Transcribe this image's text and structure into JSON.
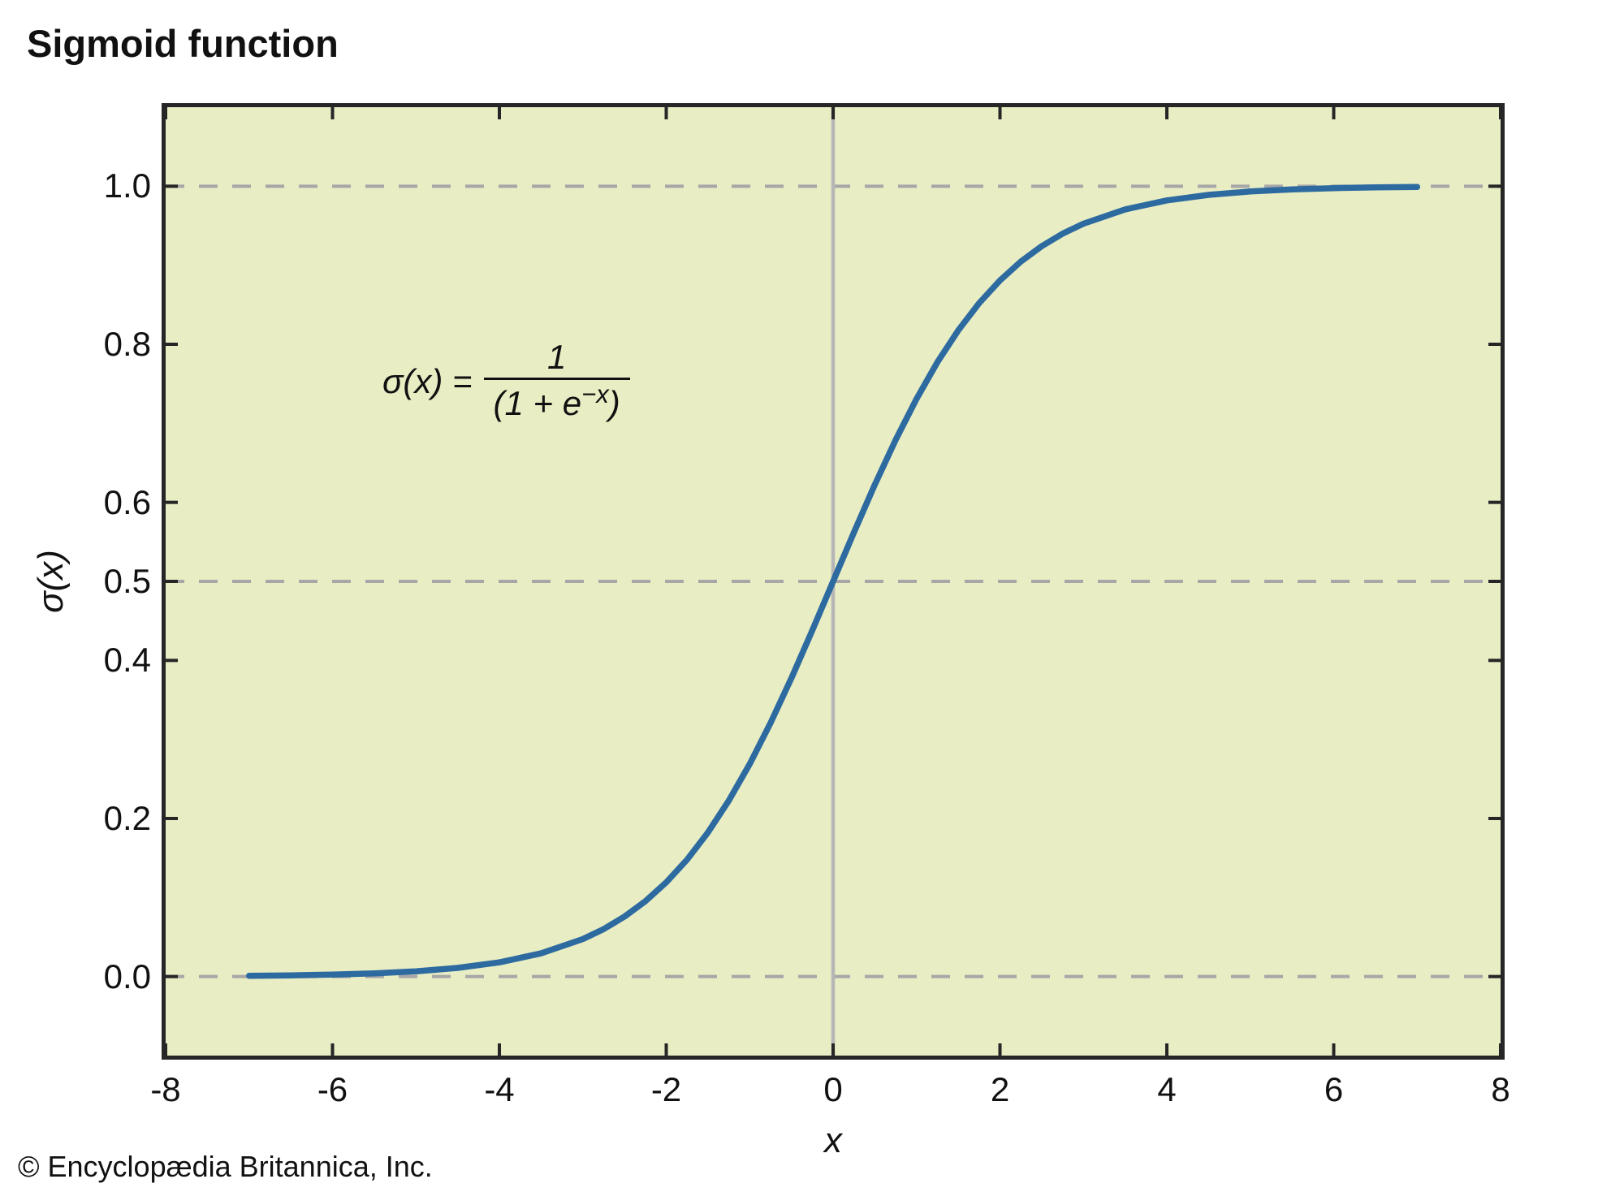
{
  "title": "Sigmoid function",
  "copyright": "© Encyclopædia Britannica, Inc.",
  "formula": {
    "lhs": "σ(x) =",
    "numerator": "1",
    "den_pre": "(1 + e",
    "den_sup": "−x",
    "den_post": ")"
  },
  "chart_data": {
    "type": "line",
    "title": "Sigmoid function",
    "annotation": "σ(x) = 1 / (1 + e^−x)",
    "xlabel": "x",
    "ylabel": "σ(x)",
    "xlim": [
      -8,
      8
    ],
    "ylim": [
      -0.1,
      1.1
    ],
    "x_ticks": [
      -8,
      -6,
      -4,
      -2,
      0,
      2,
      4,
      6,
      8
    ],
    "x_tick_labels": [
      "-8",
      "-6",
      "-4",
      "-2",
      "0",
      "2",
      "4",
      "6",
      "8"
    ],
    "y_ticks": [
      0.0,
      0.2,
      0.4,
      0.5,
      0.6,
      0.8,
      1.0
    ],
    "y_tick_labels": [
      "0.0",
      "0.2",
      "0.4",
      "0.5",
      "0.6",
      "0.8",
      "1.0"
    ],
    "gridlines_y": [
      0.0,
      0.5,
      1.0
    ],
    "grid_style": "dashed",
    "vertical_line_x": 0,
    "legend": "none",
    "colors": {
      "plot_background": "#e8edc4",
      "frame": "#262626",
      "grid": "#a7a7a7",
      "zero_axis_line": "#b6b6b6",
      "curve": "#2d6aa0",
      "text": "#111111"
    },
    "series": [
      {
        "name": "sigmoid",
        "color": "#2d6aa0",
        "points": [
          [
            -7.0,
            0.00091
          ],
          [
            -6.5,
            0.0015
          ],
          [
            -6.0,
            0.00247
          ],
          [
            -5.5,
            0.00407
          ],
          [
            -5.0,
            0.00669
          ],
          [
            -4.5,
            0.01099
          ],
          [
            -4.0,
            0.01799
          ],
          [
            -3.5,
            0.02931
          ],
          [
            -3.0,
            0.04743
          ],
          [
            -2.75,
            0.06009
          ],
          [
            -2.5,
            0.07586
          ],
          [
            -2.25,
            0.09535
          ],
          [
            -2.0,
            0.1192
          ],
          [
            -1.75,
            0.14805
          ],
          [
            -1.5,
            0.18243
          ],
          [
            -1.25,
            0.2227
          ],
          [
            -1.0,
            0.26894
          ],
          [
            -0.75,
            0.32082
          ],
          [
            -0.5,
            0.37754
          ],
          [
            -0.25,
            0.43782
          ],
          [
            0.0,
            0.5
          ],
          [
            0.25,
            0.56218
          ],
          [
            0.5,
            0.62246
          ],
          [
            0.75,
            0.67918
          ],
          [
            1.0,
            0.73106
          ],
          [
            1.25,
            0.7773
          ],
          [
            1.5,
            0.81757
          ],
          [
            1.75,
            0.85195
          ],
          [
            2.0,
            0.8808
          ],
          [
            2.25,
            0.90465
          ],
          [
            2.5,
            0.92414
          ],
          [
            2.75,
            0.93991
          ],
          [
            3.0,
            0.95257
          ],
          [
            3.5,
            0.97069
          ],
          [
            4.0,
            0.98201
          ],
          [
            4.5,
            0.98901
          ],
          [
            5.0,
            0.99331
          ],
          [
            5.5,
            0.99593
          ],
          [
            6.0,
            0.99753
          ],
          [
            6.5,
            0.9985
          ],
          [
            7.0,
            0.99909
          ]
        ]
      }
    ]
  }
}
